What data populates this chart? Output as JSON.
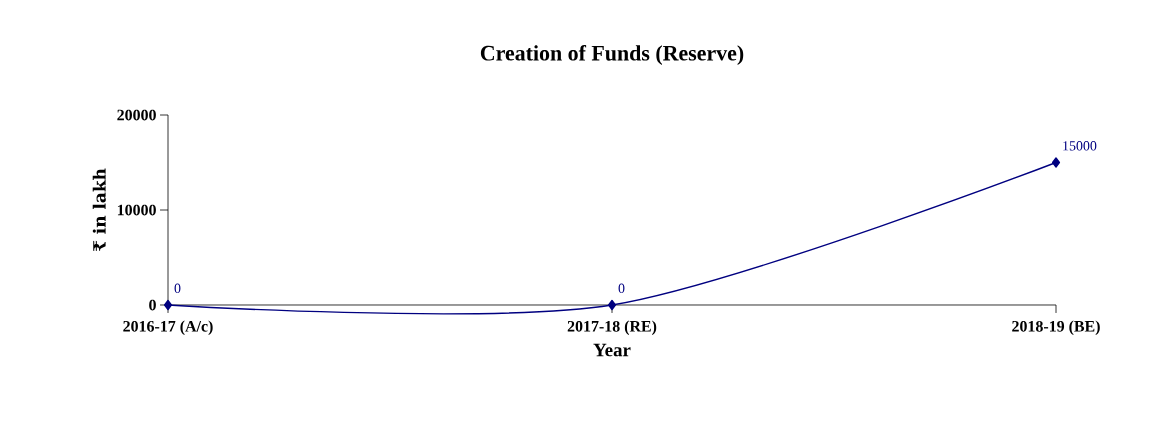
{
  "chart_data": {
    "type": "line",
    "title": "Creation of Funds (Reserve)",
    "xlabel": "Year",
    "ylabel": "₹ in lakh",
    "categories": [
      "2016-17 (A/c)",
      "2017-18 (RE)",
      "2018-19 (BE)"
    ],
    "series": [
      {
        "color": "#000080",
        "values": [
          0,
          0,
          15000
        ]
      }
    ],
    "ylim": [
      0,
      20000
    ],
    "yticks": [
      0,
      10000,
      20000
    ],
    "marker": "diamond",
    "data_labels": true
  }
}
